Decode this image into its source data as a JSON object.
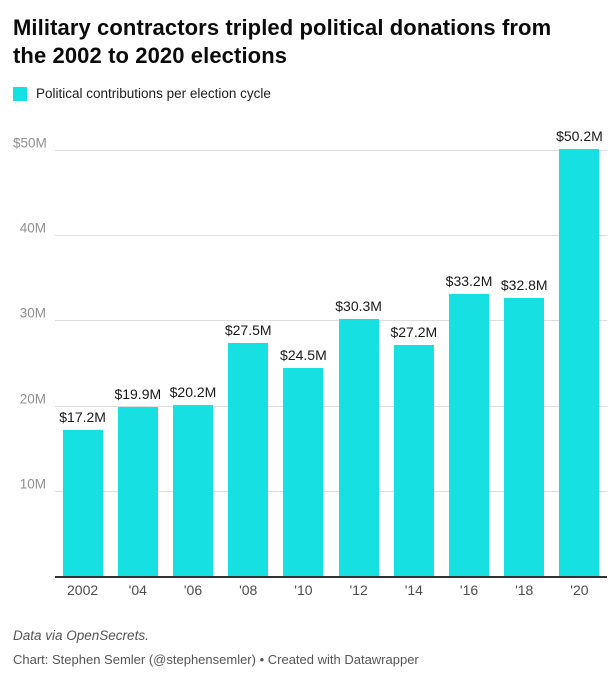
{
  "header": {
    "title": "Military contractors tripled political donations from the 2002 to 2020 elections"
  },
  "legend": {
    "label": "Political contributions per election cycle",
    "swatch_color": "#16e0e1"
  },
  "chart_data": {
    "type": "bar",
    "title": "Military contractors tripled political donations from the 2002 to 2020 elections",
    "legend_entries": [
      "Political contributions per election cycle"
    ],
    "categories": [
      "2002",
      "'04",
      "'06",
      "'08",
      "'10",
      "'12",
      "'14",
      "'16",
      "'18",
      "'20"
    ],
    "values": [
      17.2,
      19.9,
      20.2,
      27.5,
      24.5,
      30.3,
      27.2,
      33.2,
      32.8,
      50.2
    ],
    "value_labels": [
      "$17.2M",
      "$19.9M",
      "$20.2M",
      "$27.5M",
      "$24.5M",
      "$30.3M",
      "$27.2M",
      "$33.2M",
      "$32.8M",
      "$50.2M"
    ],
    "yticks": [
      {
        "value": 10,
        "label": "10M"
      },
      {
        "value": 20,
        "label": "20M"
      },
      {
        "value": 30,
        "label": "30M"
      },
      {
        "value": 40,
        "label": "40M"
      },
      {
        "value": 50,
        "label": "$50M"
      }
    ],
    "ylim": [
      0,
      52.5
    ],
    "xlabel": "",
    "ylabel": "",
    "grid": true,
    "legend_position": "top-left",
    "colors": {
      "bar": "#16e0e1",
      "gridline": "#dedede",
      "baseline": "#333333",
      "ytick_label": "#8f8f8f",
      "xtick_label": "#4d4d4d",
      "value_label": "#1a1a1a"
    }
  },
  "footer": {
    "source": "Data via OpenSecrets.",
    "byline": "Chart: Stephen Semler (@stephensemler) • Created with Datawrapper"
  }
}
